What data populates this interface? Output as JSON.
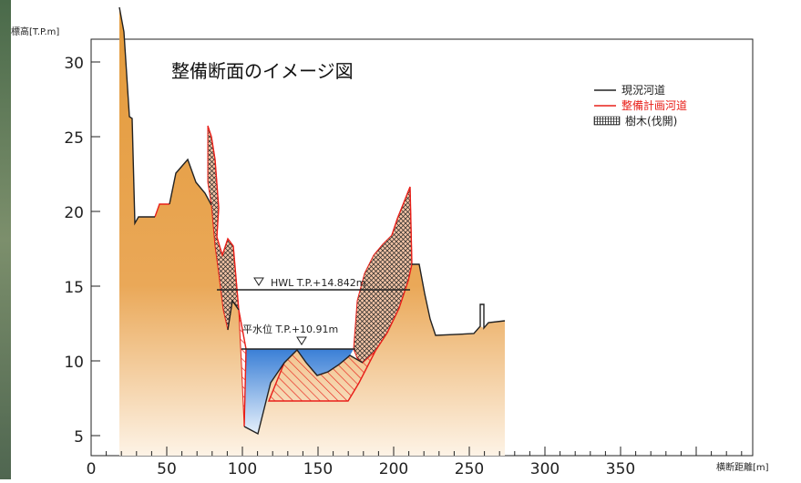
{
  "diagram": {
    "title": "整備断面のイメージ図",
    "y_axis_label": "標高[T.P.m]",
    "x_axis_label": "横断距離[m]",
    "y_ticks": [
      "30",
      "25",
      "20",
      "15",
      "10",
      "5"
    ],
    "x_ticks": [
      "0",
      "50",
      "100",
      "150",
      "200",
      "250",
      "300",
      "350"
    ],
    "hwl_label": "HWL T.P.+14.842m",
    "normal_level_label": "平水位 T.P.+10.91m",
    "legend": [
      {
        "label": "現況河道",
        "color": "#222222",
        "kind": "line"
      },
      {
        "label": "整備計画河道",
        "color": "#e8201a",
        "kind": "line"
      },
      {
        "label": "樹木(伐開)",
        "color": "#222222",
        "kind": "hatch"
      }
    ],
    "colors": {
      "ground_top": "#e39a3a",
      "ground_bottom": "#fdf3e6",
      "water_top": "#3a7fd6",
      "water_bottom": "#e6f0fb",
      "excavation": "#e8201a",
      "existing": "#222222"
    }
  }
}
